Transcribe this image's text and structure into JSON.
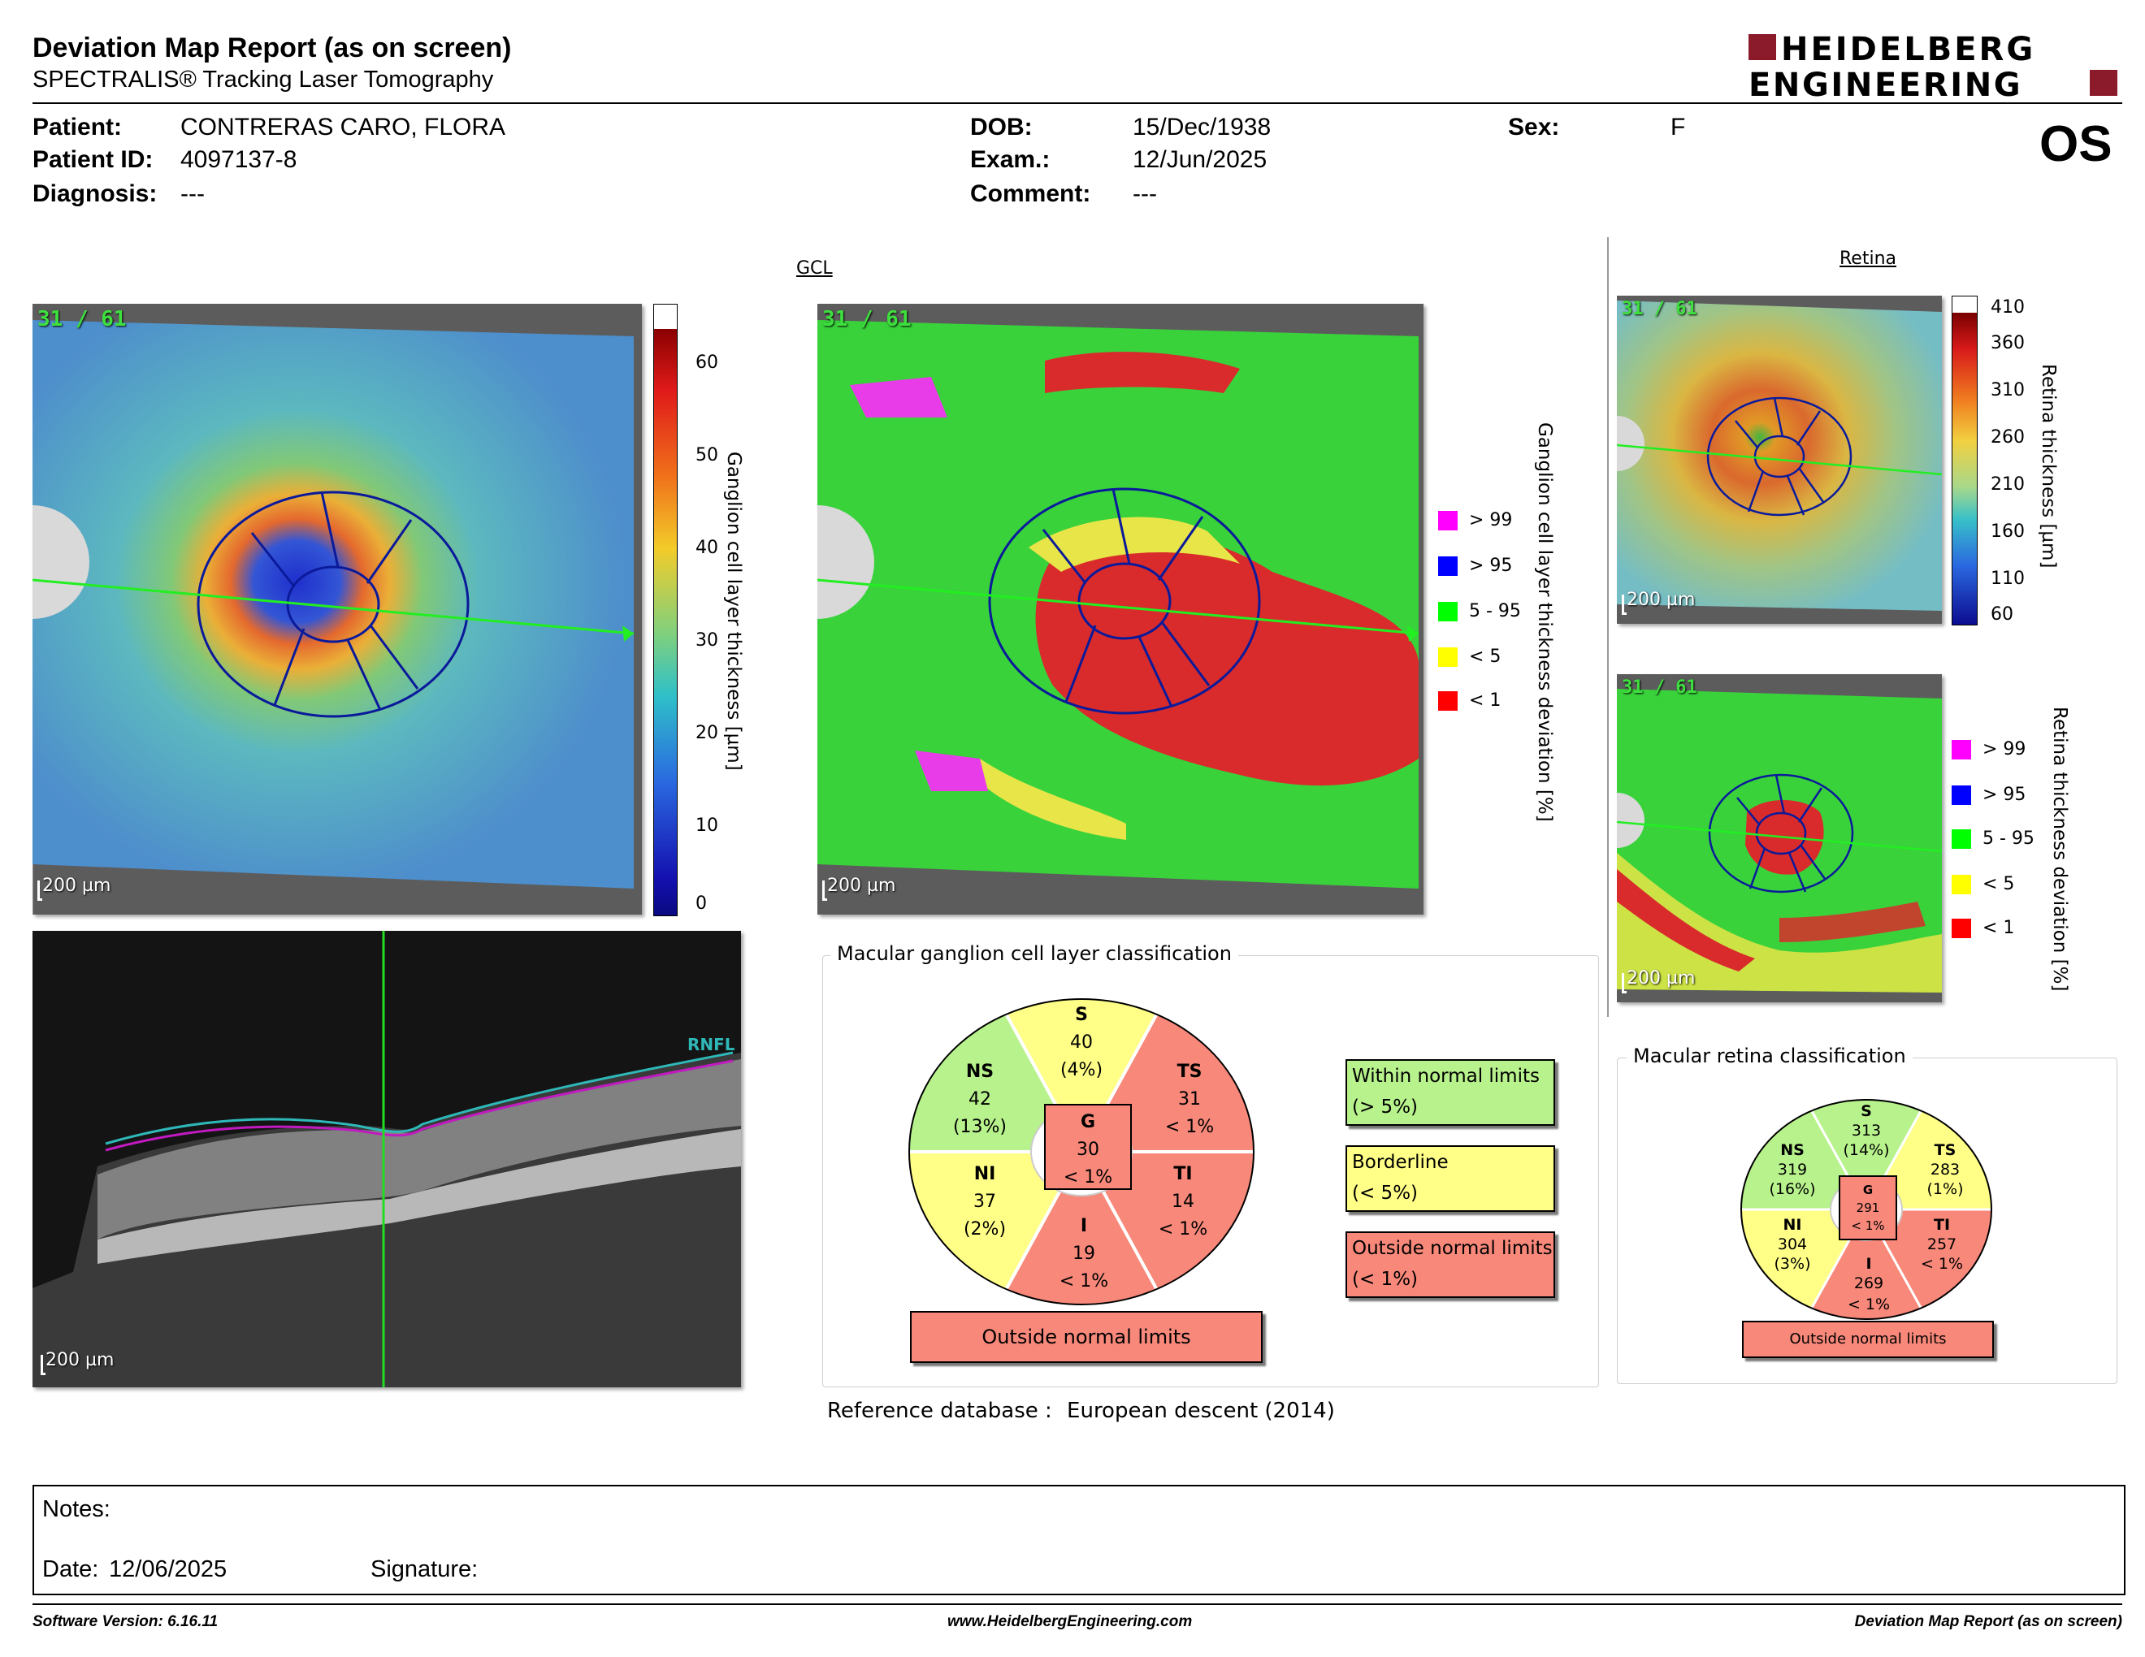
{
  "header": {
    "title": "Deviation Map Report (as on screen)",
    "subtitle": "SPECTRALIS® Tracking Laser Tomography",
    "logo_line1": "HEIDELBERG",
    "logo_line2": "ENGINEERING",
    "eye": "OS"
  },
  "patient": {
    "name_label": "Patient:",
    "name": "CONTRERAS CARO, FLORA",
    "id_label": "Patient ID:",
    "id": "4097137-8",
    "diagnosis_label": "Diagnosis:",
    "diagnosis": "---",
    "dob_label": "DOB:",
    "dob": "15/Dec/1938",
    "exam_label": "Exam.:",
    "exam": "12/Jun/2025",
    "comment_label": "Comment:",
    "comment": "---",
    "sex_label": "Sex:",
    "sex": "F"
  },
  "gcl": {
    "title": "GCL",
    "frame": "31 / 61",
    "scale": "200 µm",
    "thickness_axis_label": "Ganglion cell layer thickness [µm]",
    "thickness_ticks": [
      "60",
      "50",
      "40",
      "30",
      "20",
      "10",
      "0"
    ],
    "deviation_axis_label": "Ganglion cell layer thickness deviation [%]",
    "legend": [
      {
        "label": "> 99",
        "color": "#ff00ff"
      },
      {
        "label": "> 95",
        "color": "#0000ff"
      },
      {
        "label": "5 - 95",
        "color": "#00ff00"
      },
      {
        "label": "< 5",
        "color": "#ffff00"
      },
      {
        "label": "< 1",
        "color": "#ff0000"
      }
    ],
    "bscan_layer_label": "RNFL",
    "bscan_scale": "200 µm"
  },
  "retina": {
    "title": "Retina",
    "frame": "31 / 61",
    "scale": "200 µm",
    "thickness_axis_label": "Retina thickness [µm]",
    "thickness_ticks": [
      "410",
      "360",
      "310",
      "260",
      "210",
      "160",
      "110",
      "60"
    ],
    "deviation_axis_label": "Retina thickness deviation [%]",
    "legend": [
      {
        "label": "> 99",
        "color": "#ff00ff"
      },
      {
        "label": "> 95",
        "color": "#0000ff"
      },
      {
        "label": "5 - 95",
        "color": "#00ff00"
      },
      {
        "label": "< 5",
        "color": "#ffff00"
      },
      {
        "label": "< 1",
        "color": "#ff0000"
      }
    ]
  },
  "gcl_classification": {
    "title": "Macular ganglion cell layer classification",
    "sectors": {
      "S": {
        "name": "S",
        "value": "40",
        "pct": "(4%)",
        "color": "#ffff88"
      },
      "NS": {
        "name": "NS",
        "value": "42",
        "pct": "(13%)",
        "color": "#b8f28c"
      },
      "TS": {
        "name": "TS",
        "value": "31",
        "pct": "< 1%",
        "color": "#f7887a"
      },
      "NI": {
        "name": "NI",
        "value": "37",
        "pct": "(2%)",
        "color": "#ffff88"
      },
      "TI": {
        "name": "TI",
        "value": "14",
        "pct": "< 1%",
        "color": "#f7887a"
      },
      "I": {
        "name": "I",
        "value": "19",
        "pct": "< 1%",
        "color": "#f7887a"
      },
      "G": {
        "name": "G",
        "value": "30",
        "pct": "< 1%",
        "color": "#f7887a"
      }
    },
    "result": "Outside normal limits",
    "key": [
      {
        "line1": "Within normal limits",
        "line2": "(> 5%)",
        "color": "#b8f28c"
      },
      {
        "line1": "Borderline",
        "line2": "(< 5%)",
        "color": "#ffff88"
      },
      {
        "line1": "Outside normal limits",
        "line2": "(< 1%)",
        "color": "#f7887a"
      }
    ]
  },
  "retina_classification": {
    "title": "Macular retina classification",
    "sectors": {
      "S": {
        "name": "S",
        "value": "313",
        "pct": "(14%)",
        "color": "#b8f28c"
      },
      "NS": {
        "name": "NS",
        "value": "319",
        "pct": "(16%)",
        "color": "#b8f28c"
      },
      "TS": {
        "name": "TS",
        "value": "283",
        "pct": "(1%)",
        "color": "#ffff88"
      },
      "NI": {
        "name": "NI",
        "value": "304",
        "pct": "(3%)",
        "color": "#ffff88"
      },
      "TI": {
        "name": "TI",
        "value": "257",
        "pct": "< 1%",
        "color": "#f7887a"
      },
      "I": {
        "name": "I",
        "value": "269",
        "pct": "< 1%",
        "color": "#f7887a"
      },
      "G": {
        "name": "G",
        "value": "291",
        "pct": "< 1%",
        "color": "#f7887a"
      }
    },
    "result": "Outside normal limits"
  },
  "reference": {
    "label": "Reference database :",
    "value": "European descent (2014)"
  },
  "notes": {
    "label": "Notes:",
    "date_label": "Date:",
    "date": "12/06/2025",
    "signature_label": "Signature:"
  },
  "footer": {
    "software": "Software Version: 6.16.11",
    "website": "www.HeidelbergEngineering.com",
    "report": "Deviation Map Report (as on screen)"
  }
}
